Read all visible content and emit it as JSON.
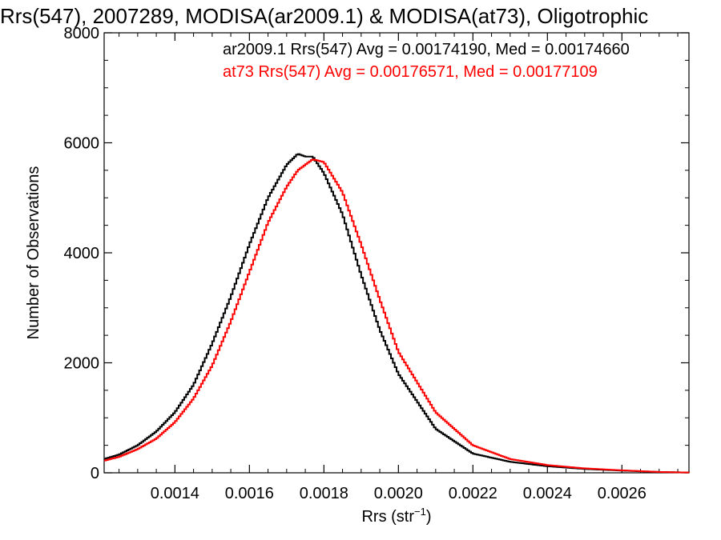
{
  "chart_data": {
    "type": "line",
    "title": "Rrs(547), 2007289, MODISA(ar2009.1) & MODISA(at73), Oligotrophic",
    "xlabel": "Rrs (str",
    "xlabel_sup": "−1",
    "xlabel_close": ")",
    "ylabel": "Number of Observations",
    "xlim": [
      0.00121,
      0.00278
    ],
    "ylim": [
      0,
      8000
    ],
    "x_ticks": [
      0.0014,
      0.0016,
      0.0018,
      0.002,
      0.0022,
      0.0024,
      0.0026
    ],
    "x_tick_labels": [
      "0.0014",
      "0.0016",
      "0.0018",
      "0.0020",
      "0.0022",
      "0.0024",
      "0.0026"
    ],
    "y_ticks": [
      0,
      2000,
      4000,
      6000,
      8000
    ],
    "y_tick_labels": [
      "0",
      "2000",
      "4000",
      "6000",
      "8000"
    ],
    "grid": false,
    "legend_position": "top-right",
    "series": [
      {
        "name": "ar2009.1",
        "annotation": "ar2009.1 Rrs(547) Avg = 0.00174190, Med = 0.00174660",
        "color": "#000000",
        "x": [
          0.00121,
          0.00125,
          0.0013,
          0.00135,
          0.0014,
          0.00145,
          0.0015,
          0.00155,
          0.0016,
          0.00165,
          0.0017,
          0.00173,
          0.00175,
          0.00177,
          0.0018,
          0.00185,
          0.0019,
          0.00195,
          0.002,
          0.0021,
          0.0022,
          0.0023,
          0.0024,
          0.0025,
          0.0026,
          0.0027,
          0.00278
        ],
        "y": [
          250,
          330,
          500,
          750,
          1100,
          1600,
          2350,
          3200,
          4150,
          5000,
          5600,
          5800,
          5750,
          5750,
          5450,
          4700,
          3600,
          2600,
          1800,
          800,
          350,
          200,
          120,
          70,
          40,
          15,
          5
        ]
      },
      {
        "name": "at73",
        "annotation": "at73 Rrs(547) Avg = 0.00176571, Med = 0.00177109",
        "color": "#ff0000",
        "x": [
          0.00121,
          0.00125,
          0.0013,
          0.00135,
          0.0014,
          0.00145,
          0.0015,
          0.00155,
          0.0016,
          0.00165,
          0.0017,
          0.00173,
          0.00175,
          0.00177,
          0.0018,
          0.00185,
          0.0019,
          0.00195,
          0.002,
          0.0021,
          0.0022,
          0.0023,
          0.0024,
          0.0025,
          0.0026,
          0.0027,
          0.00278
        ],
        "y": [
          220,
          290,
          430,
          620,
          920,
          1350,
          1950,
          2750,
          3650,
          4550,
          5200,
          5500,
          5600,
          5700,
          5650,
          5100,
          4150,
          3150,
          2200,
          1100,
          500,
          250,
          140,
          80,
          45,
          15,
          5
        ]
      }
    ]
  }
}
